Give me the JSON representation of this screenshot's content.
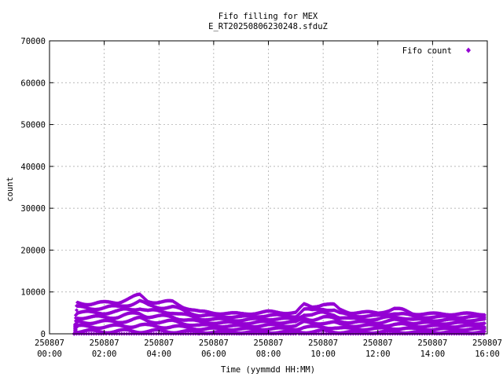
{
  "chart_data": {
    "type": "scatter",
    "title": "Fifo filling for MEX",
    "subtitle": "E_RT20250806230248.sfduZ",
    "xlabel": "Time (yymmdd HH:MM)",
    "ylabel": "count",
    "xlim": [
      0,
      16
    ],
    "ylim": [
      0,
      70000
    ],
    "grid": true,
    "legend": {
      "position": "top-right",
      "entries": [
        "Fifo count"
      ]
    },
    "series_color": "#9400d3",
    "x_ticks": [
      {
        "value": 0,
        "date": "250807",
        "time": "00:00"
      },
      {
        "value": 2,
        "date": "250807",
        "time": "02:00"
      },
      {
        "value": 4,
        "date": "250807",
        "time": "04:00"
      },
      {
        "value": 6,
        "date": "250807",
        "time": "06:00"
      },
      {
        "value": 8,
        "date": "250807",
        "time": "08:00"
      },
      {
        "value": 10,
        "date": "250807",
        "time": "10:00"
      },
      {
        "value": 12,
        "date": "250807",
        "time": "12:00"
      },
      {
        "value": 14,
        "date": "250807",
        "time": "14:00"
      },
      {
        "value": 16,
        "date": "250807",
        "time": "16:00"
      }
    ],
    "y_ticks": [
      0,
      10000,
      20000,
      30000,
      40000,
      50000,
      60000,
      70000
    ],
    "series": [
      {
        "name": "Fifo count",
        "envelope": {
          "x": [
            0.9,
            1.0,
            1.5,
            2.0,
            2.5,
            2.7,
            3.0,
            3.3,
            3.6,
            4.0,
            4.5,
            4.9,
            5.5,
            6.0,
            7.0,
            8.0,
            9.0,
            9.3,
            9.6,
            10.0,
            10.4,
            10.6,
            11.0,
            12.0,
            12.6,
            12.9,
            13.3,
            14.0,
            15.0,
            15.9
          ],
          "y": [
            0,
            8000,
            7800,
            7900,
            8200,
            8700,
            9200,
            9800,
            8500,
            8200,
            8100,
            7000,
            5600,
            5400,
            5100,
            5600,
            5400,
            7400,
            7000,
            7700,
            7300,
            6200,
            5500,
            5400,
            6400,
            6100,
            5200,
            5100,
            5100,
            5100
          ]
        }
      }
    ]
  }
}
